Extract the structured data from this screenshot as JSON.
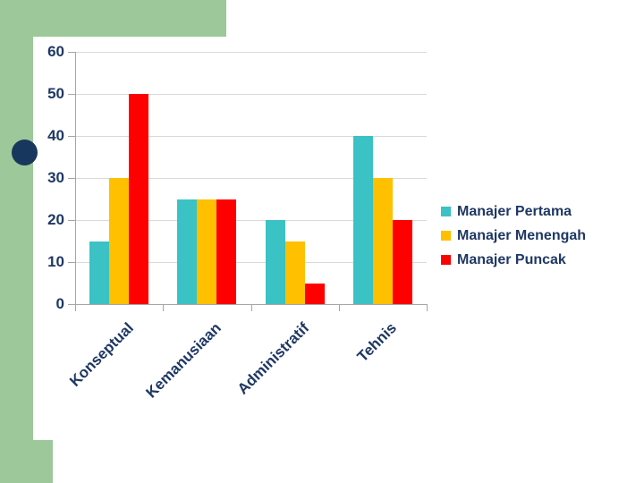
{
  "colors": {
    "accent_green": "#9CC89A",
    "bullet_navy": "#17375E",
    "text_navy": "#1F3864",
    "grid_color": "#D9D9D9",
    "axis_color": "#A6A6A6",
    "panel_white": "#FFFFFF"
  },
  "chart_data": {
    "type": "bar",
    "title": "",
    "xlabel": "",
    "ylabel": "",
    "categories": [
      "Konseptual",
      "Kemanusiaan",
      "Administratif",
      "Tehnis"
    ],
    "series": [
      {
        "name": "Manajer Pertama",
        "color": "#3BC2C4",
        "values": [
          15,
          25,
          20,
          40
        ]
      },
      {
        "name": "Manajer Menengah",
        "color": "#FFC000",
        "values": [
          30,
          25,
          15,
          30
        ]
      },
      {
        "name": "Manajer Puncak",
        "color": "#FF0000",
        "values": [
          50,
          25,
          5,
          20
        ]
      }
    ],
    "ylim": [
      0,
      60
    ],
    "ytick_step": 10,
    "ytick_labels": [
      "0",
      "10",
      "20",
      "30",
      "40",
      "50",
      "60"
    ],
    "grid": true,
    "legend_position": "right",
    "x_labels_rotation_deg": -45
  }
}
